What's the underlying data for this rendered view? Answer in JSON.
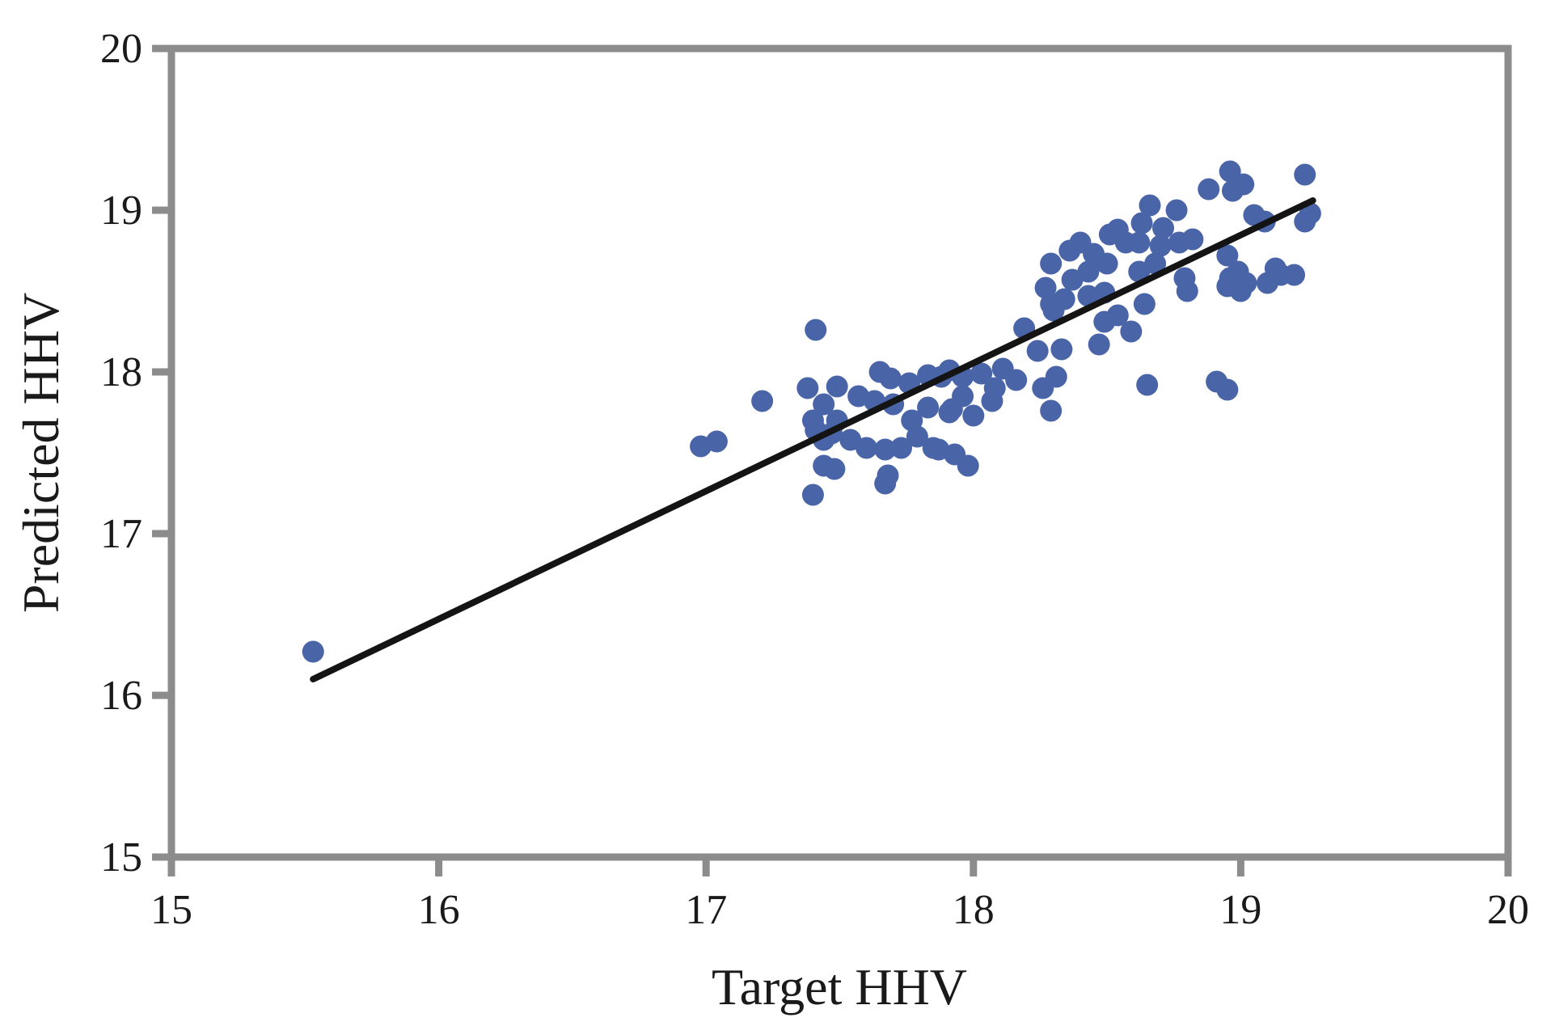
{
  "chart_data": {
    "type": "scatter",
    "title": "",
    "xlabel": "Target HHV",
    "ylabel": "Predicted HHV",
    "xlim": [
      15,
      20
    ],
    "ylim": [
      15,
      20
    ],
    "x_ticks": [
      "15",
      "16",
      "17",
      "18",
      "19",
      "20"
    ],
    "y_ticks": [
      "15",
      "16",
      "17",
      "18",
      "19",
      "20"
    ],
    "grid": false,
    "legend": "none",
    "frame": "full-box",
    "axis_color": "#8c8c8c",
    "tick_label_color": "#1a1a1a",
    "series": [
      {
        "name": "predicted-vs-target-points",
        "type": "scatter",
        "color": "#4a64a8",
        "points": [
          [
            15.53,
            16.27
          ],
          [
            16.98,
            17.54
          ],
          [
            17.04,
            17.57
          ],
          [
            17.21,
            17.82
          ],
          [
            17.41,
            18.26
          ],
          [
            17.38,
            17.9
          ],
          [
            17.49,
            17.91
          ],
          [
            17.44,
            17.8
          ],
          [
            17.4,
            17.7
          ],
          [
            17.49,
            17.7
          ],
          [
            17.44,
            17.58
          ],
          [
            17.65,
            18.0
          ],
          [
            17.69,
            17.96
          ],
          [
            17.76,
            17.93
          ],
          [
            17.83,
            17.98
          ],
          [
            17.88,
            17.97
          ],
          [
            17.91,
            18.01
          ],
          [
            17.57,
            17.85
          ],
          [
            17.63,
            17.82
          ],
          [
            17.7,
            17.8
          ],
          [
            17.77,
            17.7
          ],
          [
            17.83,
            17.78
          ],
          [
            17.41,
            17.64
          ],
          [
            17.47,
            17.62
          ],
          [
            17.54,
            17.58
          ],
          [
            17.6,
            17.53
          ],
          [
            17.67,
            17.52
          ],
          [
            17.73,
            17.53
          ],
          [
            17.79,
            17.6
          ],
          [
            17.85,
            17.53
          ],
          [
            17.44,
            17.42
          ],
          [
            17.48,
            17.4
          ],
          [
            17.68,
            17.36
          ],
          [
            17.67,
            17.31
          ],
          [
            17.4,
            17.24
          ],
          [
            17.91,
            17.75
          ],
          [
            17.87,
            17.52
          ],
          [
            17.96,
            17.97
          ],
          [
            18.03,
            17.99
          ],
          [
            18.11,
            18.02
          ],
          [
            18.16,
            17.95
          ],
          [
            18.08,
            17.9
          ],
          [
            17.96,
            17.85
          ],
          [
            17.92,
            17.77
          ],
          [
            18.0,
            17.73
          ],
          [
            18.07,
            17.82
          ],
          [
            17.98,
            17.42
          ],
          [
            17.93,
            17.49
          ],
          [
            18.19,
            18.27
          ],
          [
            18.3,
            18.38
          ],
          [
            18.24,
            18.13
          ],
          [
            18.33,
            18.14
          ],
          [
            18.31,
            17.97
          ],
          [
            18.26,
            17.9
          ],
          [
            18.29,
            17.76
          ],
          [
            18.65,
            17.92
          ],
          [
            18.47,
            18.17
          ],
          [
            18.49,
            18.31
          ],
          [
            18.54,
            18.35
          ],
          [
            18.59,
            18.25
          ],
          [
            18.29,
            18.67
          ],
          [
            18.36,
            18.75
          ],
          [
            18.4,
            18.8
          ],
          [
            18.45,
            18.73
          ],
          [
            18.51,
            18.85
          ],
          [
            18.54,
            18.88
          ],
          [
            18.57,
            18.8
          ],
          [
            18.5,
            18.67
          ],
          [
            18.43,
            18.62
          ],
          [
            18.37,
            18.57
          ],
          [
            18.27,
            18.52
          ],
          [
            18.29,
            18.42
          ],
          [
            18.34,
            18.45
          ],
          [
            18.43,
            18.47
          ],
          [
            18.49,
            18.49
          ],
          [
            18.66,
            19.03
          ],
          [
            18.76,
            19.0
          ],
          [
            18.71,
            18.89
          ],
          [
            18.63,
            18.92
          ],
          [
            18.62,
            18.8
          ],
          [
            18.7,
            18.78
          ],
          [
            18.77,
            18.8
          ],
          [
            18.82,
            18.82
          ],
          [
            18.68,
            18.67
          ],
          [
            18.62,
            18.62
          ],
          [
            18.79,
            18.58
          ],
          [
            18.8,
            18.5
          ],
          [
            18.64,
            18.42
          ],
          [
            18.88,
            19.13
          ],
          [
            18.96,
            19.24
          ],
          [
            18.97,
            19.12
          ],
          [
            19.01,
            19.16
          ],
          [
            19.24,
            19.22
          ],
          [
            19.05,
            18.97
          ],
          [
            19.09,
            18.93
          ],
          [
            19.26,
            18.98
          ],
          [
            19.24,
            18.93
          ],
          [
            18.95,
            18.72
          ],
          [
            18.99,
            18.62
          ],
          [
            18.95,
            18.53
          ],
          [
            19.02,
            18.55
          ],
          [
            19.13,
            18.64
          ],
          [
            19.15,
            18.6
          ],
          [
            19.1,
            18.55
          ],
          [
            19.2,
            18.6
          ],
          [
            18.96,
            18.58
          ],
          [
            19.0,
            18.5
          ],
          [
            18.91,
            17.94
          ],
          [
            18.95,
            17.89
          ]
        ]
      },
      {
        "name": "fit-line",
        "type": "line",
        "color": "#141414",
        "x": [
          15.53,
          19.27
        ],
        "y": [
          16.1,
          19.06
        ]
      }
    ]
  }
}
